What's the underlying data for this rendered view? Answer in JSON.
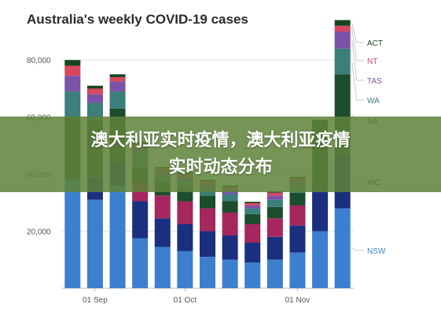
{
  "banner": {
    "line1": "澳大利亚实时疫情，澳大利亚疫情",
    "line2": "实时动态分布"
  },
  "chart_data": {
    "type": "bar",
    "stacked": true,
    "title": "Australia's weekly COVID-19 cases",
    "xlabel": "",
    "ylabel": "",
    "ylim": [
      0,
      90000
    ],
    "yticks": [
      20000,
      40000,
      60000,
      80000
    ],
    "ytick_labels": [
      "20,000",
      "40,000",
      "60,000",
      "80,000"
    ],
    "xtick_labels": [
      {
        "label": "01 Sep",
        "index": 1
      },
      {
        "label": "01 Oct",
        "index": 5
      },
      {
        "label": "01 Nov",
        "index": 10
      }
    ],
    "grid": "horizontal",
    "legend_position": "right",
    "series": [
      {
        "name": "NSW",
        "color": "#3d7fcf",
        "values": [
          38000,
          31000,
          36000,
          17500,
          14500,
          13000,
          11000,
          10000,
          9000,
          10000,
          12500,
          20000,
          28000
        ]
      },
      {
        "name": "VIC",
        "color": "#1a2f7e",
        "values": [
          0,
          8000,
          8000,
          13000,
          10000,
          9500,
          9000,
          8500,
          7000,
          8000,
          9500,
          14000,
          19000
        ]
      },
      {
        "name": "QLD",
        "color": "#a5275e",
        "values": [
          0,
          0,
          0,
          6500,
          8000,
          8000,
          8000,
          8000,
          6500,
          6500,
          7000,
          0,
          0
        ]
      },
      {
        "name": "SA",
        "color": "#1c4d2c",
        "values": [
          22000,
          20000,
          19000,
          5500,
          4500,
          4500,
          4500,
          4000,
          3500,
          4000,
          4500,
          25000,
          28000
        ]
      },
      {
        "name": "WA",
        "color": "#3b7e7a",
        "values": [
          9000,
          6000,
          6000,
          5000,
          2500,
          2500,
          2500,
          2500,
          2000,
          2500,
          2500,
          0,
          9000
        ]
      },
      {
        "name": "TAS",
        "color": "#7a52a8",
        "values": [
          5500,
          3000,
          3500,
          1800,
          1500,
          1500,
          1500,
          1500,
          1000,
          1500,
          1500,
          0,
          6000
        ]
      },
      {
        "name": "NT",
        "color": "#d8475e",
        "values": [
          3500,
          2000,
          1500,
          1200,
          1000,
          1000,
          1000,
          1000,
          800,
          1000,
          1000,
          0,
          2000
        ]
      },
      {
        "name": "ACT",
        "color": "#16451f",
        "values": [
          2000,
          1000,
          1000,
          800,
          500,
          500,
          500,
          500,
          500,
          500,
          500,
          0,
          2000
        ]
      }
    ]
  }
}
